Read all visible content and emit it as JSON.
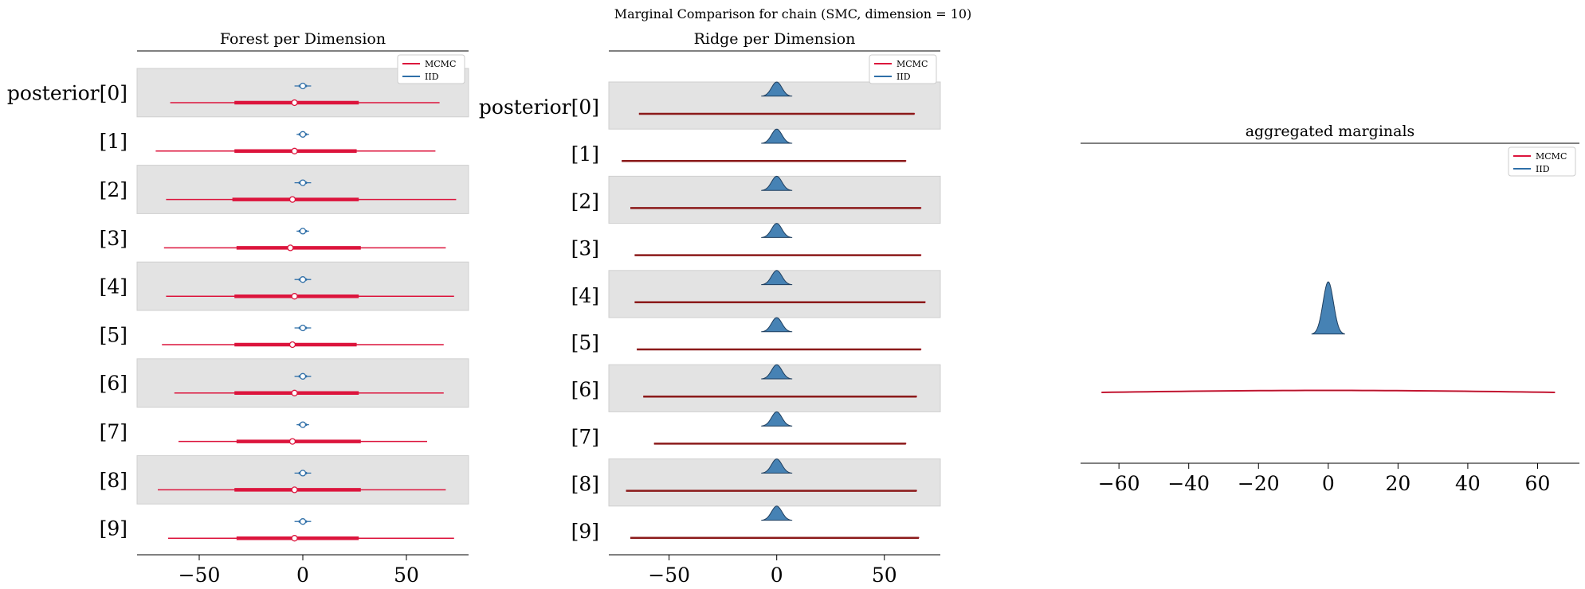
{
  "suptitle": "Marginal Comparison for chain (SMC, dimension = 10)",
  "colors": {
    "mcmc": "#dc143c",
    "iid": "#2f6fa8",
    "iid_fill": "#4682b4",
    "band": "#e3e3e3",
    "band_edge": "#cfcfcf"
  },
  "chart_data": [
    {
      "type": "forest",
      "title": "Forest per Dimension",
      "legend": {
        "placement": "top-right",
        "entries": [
          "MCMC",
          "IID"
        ]
      },
      "xlim": [
        -80,
        80
      ],
      "xticks": [
        -50,
        0,
        50
      ],
      "xtick_labels": [
        "−50",
        "0",
        "50"
      ],
      "categories": [
        "posterior[0]",
        "[1]",
        "[2]",
        "[3]",
        "[4]",
        "[5]",
        "[6]",
        "[7]",
        "[8]",
        "[9]"
      ],
      "series": [
        {
          "name": "MCMC",
          "median": [
            -4,
            -4,
            -5,
            -6,
            -4,
            -5,
            -4,
            -5,
            -4,
            -4
          ],
          "q_low": [
            -33,
            -33,
            -34,
            -32,
            -33,
            -33,
            -33,
            -32,
            -33,
            -32
          ],
          "q_high": [
            27,
            26,
            27,
            28,
            27,
            26,
            27,
            28,
            28,
            27
          ],
          "min": [
            -64,
            -71,
            -66,
            -67,
            -66,
            -68,
            -62,
            -60,
            -70,
            -65
          ],
          "max": [
            66,
            64,
            74,
            69,
            73,
            68,
            68,
            60,
            69,
            73
          ]
        },
        {
          "name": "IID",
          "median": [
            0,
            0,
            0,
            0,
            0,
            0,
            0,
            0,
            0,
            0
          ],
          "q_low": [
            -2,
            -2,
            -2,
            -2,
            -2,
            -2,
            -2,
            -2,
            -2,
            -2
          ],
          "q_high": [
            2,
            2,
            2,
            2,
            2,
            2,
            2,
            2,
            2,
            2
          ],
          "min": [
            -4,
            -3,
            -4,
            -3,
            -4,
            -4,
            -4,
            -3,
            -4,
            -4
          ],
          "max": [
            4,
            3,
            4,
            3,
            4,
            4,
            4,
            3,
            4,
            4
          ]
        }
      ]
    },
    {
      "type": "ridge",
      "title": "Ridge per Dimension",
      "legend": {
        "placement": "top-right",
        "entries": [
          "MCMC",
          "IID"
        ]
      },
      "xlim": [
        -78,
        76
      ],
      "xticks": [
        -50,
        0,
        50
      ],
      "xtick_labels": [
        "−50",
        "0",
        "50"
      ],
      "categories": [
        "posterior[0]",
        "[1]",
        "[2]",
        "[3]",
        "[4]",
        "[5]",
        "[6]",
        "[7]",
        "[8]",
        "[9]"
      ],
      "series": [
        {
          "name": "MCMC",
          "min": [
            -64,
            -72,
            -68,
            -66,
            -66,
            -65,
            -62,
            -57,
            -70,
            -68
          ],
          "max": [
            64,
            60,
            67,
            67,
            69,
            67,
            65,
            60,
            65,
            66
          ]
        },
        {
          "name": "IID",
          "center": [
            0,
            0,
            0,
            0,
            0,
            0,
            0,
            0,
            0,
            0
          ],
          "sd": [
            1.2,
            1.2,
            1.2,
            1.2,
            1.2,
            1.2,
            1.2,
            1.2,
            1.2,
            1.2
          ]
        }
      ]
    },
    {
      "type": "area",
      "title": "aggregated marginals",
      "legend": {
        "placement": "top-right",
        "entries": [
          "MCMC",
          "IID"
        ]
      },
      "xlim": [
        -71,
        72
      ],
      "xticks": [
        -60,
        -40,
        -20,
        0,
        20,
        40,
        60
      ],
      "xtick_labels": [
        "−60",
        "−40",
        "−20",
        "0",
        "20",
        "40",
        "60"
      ],
      "series": [
        {
          "name": "MCMC",
          "min": -65,
          "max": 65
        },
        {
          "name": "IID",
          "center": 0,
          "sd": 1.2,
          "min": -4,
          "max": 4
        }
      ]
    }
  ]
}
